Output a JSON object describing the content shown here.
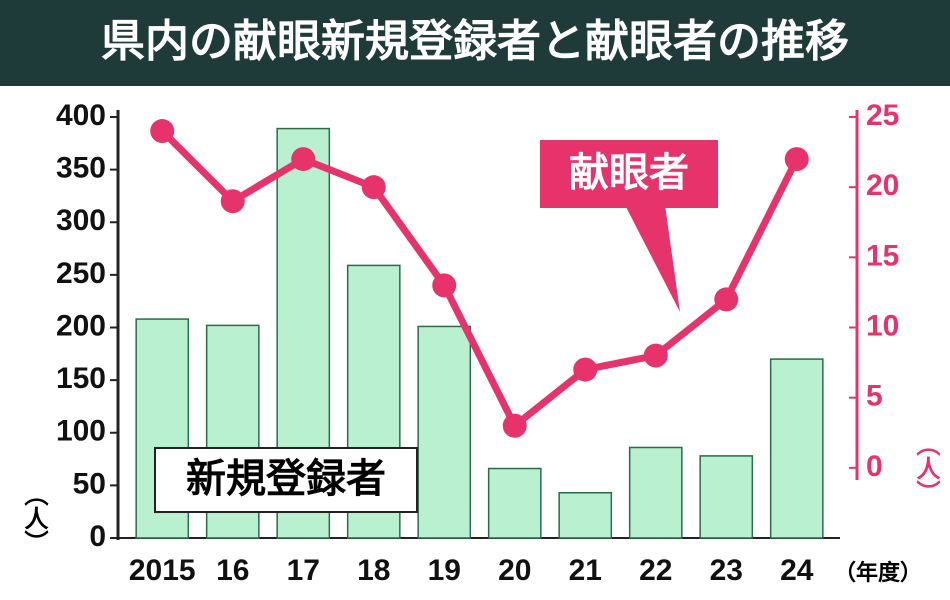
{
  "chart_data": {
    "type": "bar",
    "title": "県内の献眼新規登録者と献眼者の推移",
    "categories": [
      "2015",
      "16",
      "17",
      "18",
      "19",
      "20",
      "21",
      "22",
      "23",
      "24"
    ],
    "series": [
      {
        "name": "新規登録者",
        "type": "bar",
        "color": "#b9f0cf",
        "values": [
          208,
          202,
          389,
          259,
          201,
          66,
          43,
          86,
          78,
          170
        ]
      },
      {
        "name": "献眼者",
        "type": "line",
        "axis": "y2",
        "color": "#e6336b",
        "values": [
          24,
          19,
          22,
          20,
          13,
          3,
          7,
          8,
          12,
          22
        ]
      }
    ],
    "ylim": [
      0,
      400
    ],
    "yticks": [
      0,
      50,
      100,
      150,
      200,
      250,
      300,
      350,
      400
    ],
    "y2lim": [
      -5,
      25
    ],
    "y2ticks": [
      0,
      5,
      10,
      15,
      20,
      25
    ],
    "y_label": "（人）",
    "y2_label": "（人）",
    "x_label": "（年度）",
    "grid": false
  }
}
